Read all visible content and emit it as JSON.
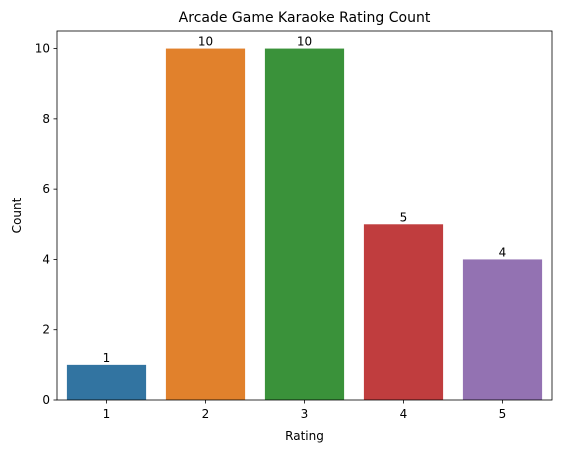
{
  "chart_data": {
    "type": "bar",
    "title": "Arcade Game Karaoke Rating Count",
    "xlabel": "Rating",
    "ylabel": "Count",
    "categories": [
      "1",
      "2",
      "3",
      "4",
      "5"
    ],
    "values": [
      1,
      10,
      10,
      5,
      4
    ],
    "data_labels": [
      "1",
      "10",
      "10",
      "5",
      "4"
    ],
    "colors": [
      "#3274a1",
      "#e1812c",
      "#3a923a",
      "#c03d3e",
      "#9372b2"
    ],
    "ylim": [
      0,
      10.5
    ],
    "yticks": [
      0,
      2,
      4,
      6,
      8,
      10
    ],
    "grid": false,
    "legend": "none"
  }
}
